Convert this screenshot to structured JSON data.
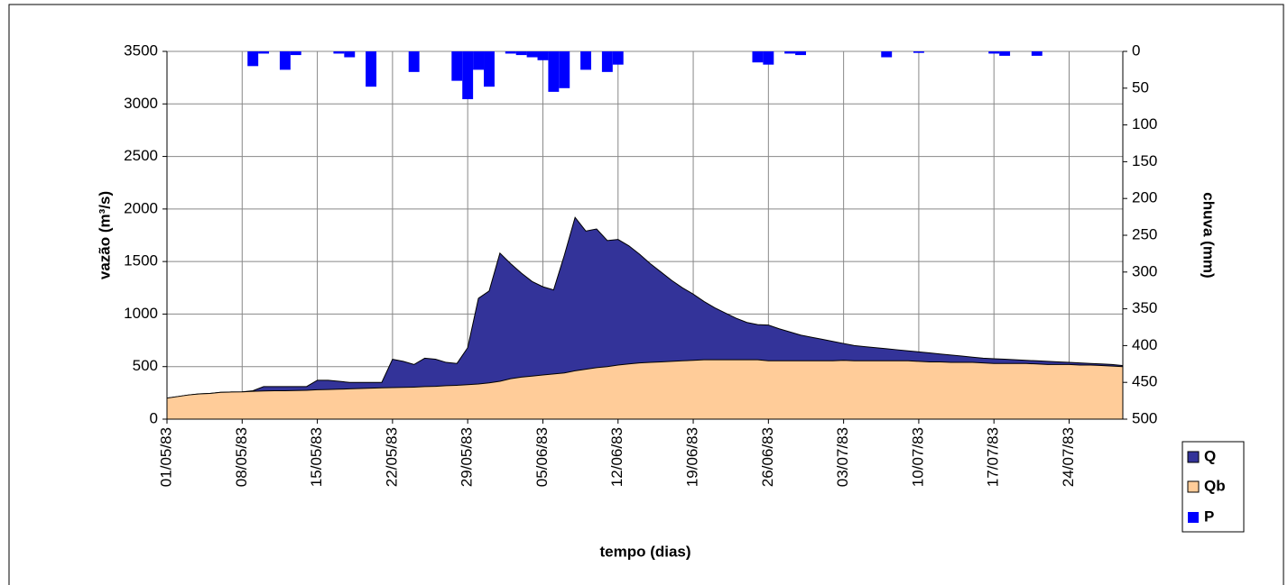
{
  "chart_data": {
    "type": "area",
    "xlabel": "tempo (dias)",
    "ylabel": "vazão (m³/s)",
    "y2label": "chuva (mm)",
    "categories": [
      "01/05/83",
      null,
      null,
      null,
      null,
      null,
      null,
      "08/05/83",
      null,
      null,
      null,
      null,
      null,
      null,
      "15/05/83",
      null,
      null,
      null,
      null,
      null,
      null,
      "22/05/83",
      null,
      null,
      null,
      null,
      null,
      null,
      "29/05/83",
      null,
      null,
      null,
      null,
      null,
      null,
      "05/06/83",
      null,
      null,
      null,
      null,
      null,
      null,
      "12/06/83",
      null,
      null,
      null,
      null,
      null,
      null,
      "19/06/83",
      null,
      null,
      null,
      null,
      null,
      null,
      "26/06/83",
      null,
      null,
      null,
      null,
      null,
      null,
      "03/07/83",
      null,
      null,
      null,
      null,
      null,
      null,
      "10/07/83",
      null,
      null,
      null,
      null,
      null,
      null,
      "17/07/83",
      null,
      null,
      null,
      null,
      null,
      null,
      "24/07/83",
      null,
      null,
      null,
      null,
      null
    ],
    "series": [
      {
        "name": "Q",
        "color": "#333399",
        "type": "area",
        "values": [
          200,
          215,
          230,
          240,
          245,
          255,
          258,
          260,
          270,
          310,
          310,
          310,
          310,
          310,
          370,
          370,
          360,
          350,
          350,
          350,
          350,
          570,
          550,
          520,
          580,
          570,
          540,
          530,
          680,
          1150,
          1220,
          1580,
          1480,
          1390,
          1310,
          1260,
          1230,
          1560,
          1920,
          1790,
          1810,
          1700,
          1710,
          1650,
          1570,
          1480,
          1400,
          1320,
          1250,
          1190,
          1120,
          1060,
          1010,
          960,
          920,
          900,
          895,
          860,
          830,
          800,
          780,
          760,
          740,
          720,
          700,
          690,
          680,
          670,
          660,
          650,
          640,
          630,
          620,
          610,
          600,
          590,
          580,
          575,
          570,
          565,
          560,
          555,
          550,
          545,
          540,
          535,
          530,
          525,
          520,
          510
        ]
      },
      {
        "name": "Qb",
        "color": "#FFCC99",
        "type": "area",
        "values": [
          200,
          215,
          230,
          240,
          245,
          255,
          258,
          260,
          265,
          268,
          270,
          270,
          272,
          275,
          280,
          282,
          285,
          288,
          292,
          295,
          298,
          300,
          302,
          305,
          310,
          312,
          318,
          322,
          328,
          335,
          345,
          360,
          385,
          400,
          410,
          420,
          430,
          440,
          460,
          475,
          490,
          500,
          515,
          525,
          535,
          540,
          545,
          550,
          555,
          560,
          565,
          565,
          565,
          565,
          565,
          565,
          555,
          555,
          555,
          555,
          555,
          555,
          555,
          560,
          555,
          555,
          555,
          555,
          555,
          555,
          550,
          545,
          545,
          540,
          540,
          540,
          535,
          530,
          530,
          530,
          530,
          525,
          520,
          520,
          520,
          515,
          515,
          510,
          505,
          500
        ]
      },
      {
        "name": "P",
        "color": "#0000FF",
        "type": "bar",
        "axis": "y2",
        "values": [
          0,
          0,
          0,
          0,
          0,
          0,
          0,
          0,
          20,
          3,
          0,
          25,
          5,
          0,
          0,
          0,
          3,
          8,
          0,
          48,
          0,
          0,
          0,
          28,
          0,
          0,
          0,
          40,
          65,
          25,
          48,
          0,
          3,
          5,
          8,
          12,
          55,
          50,
          0,
          25,
          0,
          28,
          18,
          0,
          0,
          0,
          0,
          0,
          0,
          0,
          0,
          0,
          0,
          0,
          0,
          15,
          18,
          0,
          3,
          5,
          0,
          0,
          0,
          0,
          0,
          0,
          0,
          8,
          0,
          0,
          2,
          0,
          0,
          0,
          0,
          0,
          0,
          3,
          6,
          0,
          0,
          6,
          0,
          0,
          0,
          0,
          0,
          0,
          0,
          0
        ]
      }
    ],
    "ylim": [
      0,
      3500
    ],
    "yticks": [
      0,
      500,
      1000,
      1500,
      2000,
      2500,
      3000,
      3500
    ],
    "y2lim": [
      0,
      500
    ],
    "y2_reversed": true,
    "y2ticks": [
      0,
      50,
      100,
      150,
      200,
      250,
      300,
      350,
      400,
      450,
      500
    ],
    "grid": true,
    "legend": "right"
  }
}
